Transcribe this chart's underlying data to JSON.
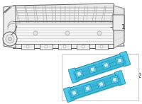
{
  "bg_color": "#ffffff",
  "gasket_color": "#4ec8e8",
  "gasket_outline": "#1a7fa0",
  "gasket_dark": "#2aaac8",
  "line_color": "#999999",
  "line_dark": "#555555",
  "leader_color": "#444444",
  "label1_text": "1",
  "label2_text": "2",
  "box_edge": "#cccccc",
  "box_bg": "#ffffff"
}
